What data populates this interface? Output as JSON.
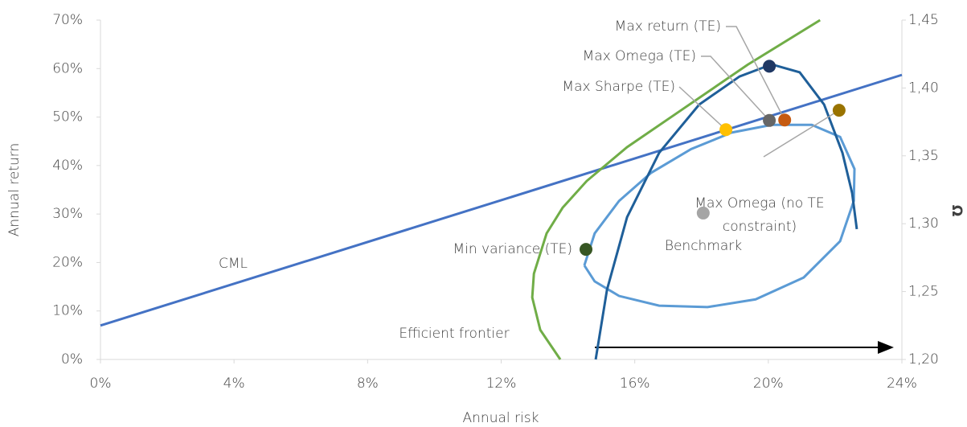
{
  "chart_data": {
    "type": "scatter",
    "xlabel": "Annual risk",
    "ylabel": "Annual return",
    "y2label": "Ω",
    "xlim": [
      0,
      24
    ],
    "xticks": [
      {
        "value": 0,
        "label": "0%"
      },
      {
        "value": 4,
        "label": "4%"
      },
      {
        "value": 8,
        "label": "8%"
      },
      {
        "value": 12,
        "label": "12%"
      },
      {
        "value": 16,
        "label": "16%"
      },
      {
        "value": 20,
        "label": "20%"
      },
      {
        "value": 24,
        "label": "24%"
      }
    ],
    "ylim": [
      0,
      70
    ],
    "yticks": [
      {
        "value": 0,
        "label": "0%"
      },
      {
        "value": 10,
        "label": "10%"
      },
      {
        "value": 20,
        "label": "20%"
      },
      {
        "value": 30,
        "label": "30%"
      },
      {
        "value": 40,
        "label": "40%"
      },
      {
        "value": 50,
        "label": "50%"
      },
      {
        "value": 60,
        "label": "60%"
      },
      {
        "value": 70,
        "label": "70%"
      }
    ],
    "y2lim": [
      1.2,
      1.45
    ],
    "y2ticks": [
      {
        "value": 1.2,
        "label": "1,20"
      },
      {
        "value": 1.25,
        "label": "1,25"
      },
      {
        "value": 1.3,
        "label": "1,30"
      },
      {
        "value": 1.35,
        "label": "1,35"
      },
      {
        "value": 1.4,
        "label": "1,40"
      },
      {
        "value": 1.45,
        "label": "1,45"
      }
    ],
    "annotations": [
      "CML",
      "Efficient frontier"
    ],
    "series": [
      {
        "color": "#4472c4",
        "x": [
          0,
          24
        ],
        "values": [
          7,
          58.7
        ]
      },
      {
        "color": "#70ad47",
        "x": [
          13.77,
          13.17,
          12.93,
          12.98,
          13.36,
          13.84,
          14.56,
          15.77,
          17.45,
          19.38,
          21.55
        ],
        "values": [
          0,
          6.1,
          12.8,
          17.7,
          26.0,
          31.3,
          36.8,
          43.8,
          51.7,
          60.8,
          70
        ]
      },
      {
        "color": "#5b9bd5",
        "x": [
          14.49,
          14.8,
          15.53,
          16.49,
          17.69,
          18.9,
          20.1,
          21.3,
          22.15,
          22.58,
          22.56,
          22.15,
          21.06,
          19.62,
          18.18,
          16.73,
          15.53,
          14.8,
          14.49
        ],
        "values": [
          19.4,
          26.0,
          32.7,
          38.5,
          43.4,
          46.8,
          48.4,
          48.4,
          45.9,
          39.3,
          32.7,
          24.4,
          16.9,
          12.4,
          10.8,
          11.1,
          13.1,
          16.1,
          19.4
        ]
      },
      {
        "color": "#1f5f99",
        "axis": "y2",
        "x": [
          14.83,
          15.17,
          15.77,
          16.73,
          17.93,
          19.14,
          20.1,
          20.94,
          21.67,
          22.22,
          22.51,
          22.65
        ],
        "values": [
          1.2,
          1.2515,
          1.3048,
          1.3522,
          1.3878,
          1.4085,
          1.4174,
          1.4115,
          1.3878,
          1.3522,
          1.3226,
          1.296
        ]
      }
    ],
    "points": [
      {
        "label": [
          "Max Sharpe (TE)"
        ],
        "color": "#ffc000",
        "x": 18.73,
        "y": 47.4
      },
      {
        "label": [
          "Max Omega (TE)"
        ],
        "color": "#666666",
        "x": 20.03,
        "y": 49.3
      },
      {
        "label": [
          "Max return (TE)"
        ],
        "color": "#c55a11",
        "x": 20.49,
        "y": 49.4
      },
      {
        "label": [
          "Max Omega (no TE",
          "constraint)"
        ],
        "color": "#997300",
        "x": 22.12,
        "y": 51.4
      },
      {
        "label": [
          "Benchmark"
        ],
        "color": "#a5a5a5",
        "x": 18.05,
        "y": 30.2
      },
      {
        "label": [
          "Min variance (TE)"
        ],
        "color": "#375623",
        "x": 14.54,
        "y": 22.7
      },
      {
        "color": "#1f3864",
        "axis": "y2",
        "x": 20.03,
        "y": 1.416
      }
    ]
  }
}
